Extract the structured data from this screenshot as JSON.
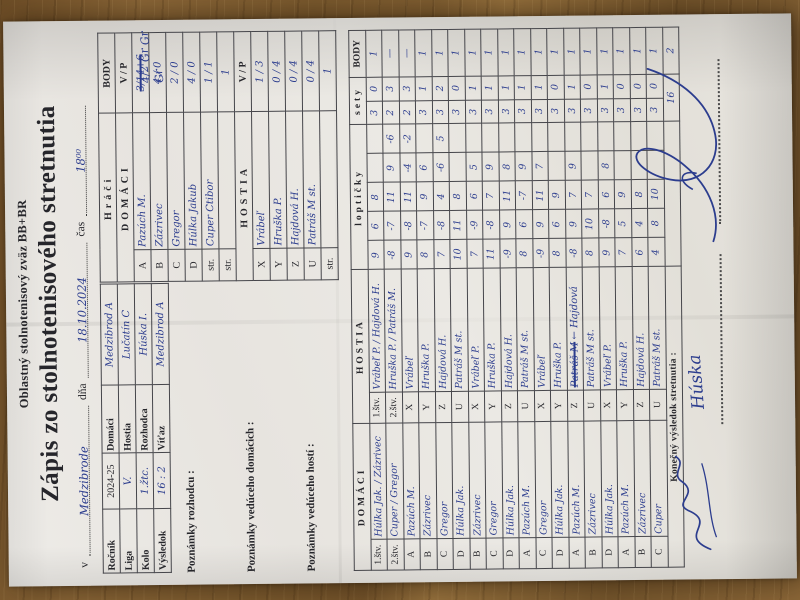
{
  "header": {
    "org": "Oblastný stolnotenisový zväz BB+BR",
    "title": "Zápis  zo stolnotenisového stretnutia",
    "place_label": "v",
    "place_value": "Medzibrode",
    "date_label": "dňa",
    "date_value": "18.10.2024",
    "time_label": "čas",
    "time_value": "18⁰⁰"
  },
  "info": {
    "rows": [
      {
        "l1": "Ročník",
        "v1": "2024-25",
        "hw1": false,
        "l2": "Domáci",
        "v2": "Medzibrod A",
        "hw2": true
      },
      {
        "l1": "Liga",
        "v1": "V.",
        "hw1": true,
        "l2": "Hostia",
        "v2": "Lučatín C",
        "hw2": true
      },
      {
        "l1": "Kolo",
        "v1": "1.žtc.",
        "hw1": true,
        "l2": "Rozhodca",
        "v2": "Húska I.",
        "hw2": true
      },
      {
        "l1": "Výsledok",
        "v1": "16 : 2",
        "hw1": true,
        "l2": "Víťaz",
        "v2": "Medzibrod A",
        "hw2": true
      }
    ]
  },
  "notes": {
    "referee": "Poznámky rozhodcu :",
    "home": "Poznámky vedúceho domácich :",
    "guest": "Poznámky vedúceho hostí :"
  },
  "players": {
    "title": "Hráči",
    "body": "BODY",
    "vp": "V / P",
    "domaci": "DOMÁCI",
    "hostia": "HOSTIA",
    "domaci_rows": [
      {
        "k": "A",
        "name": "Pazúch M.",
        "vp": "3/14+6",
        "crossed": true
      },
      {
        "k": "B",
        "name": "Zázrivec",
        "vp": "4 / 0"
      },
      {
        "k": "C",
        "name": "Gregor",
        "vp": "2 / 0"
      },
      {
        "k": "D",
        "name": "Húlka Jakub",
        "vp": "4 / 0"
      },
      {
        "k": "str.",
        "name": "Cuper Ctibor",
        "vp": "1 / 1"
      },
      {
        "k": "str.",
        "name": "",
        "vp": "1"
      }
    ],
    "hostia_rows": [
      {
        "k": "X",
        "name": "Vrábeľ",
        "vp": "1 / 3"
      },
      {
        "k": "Y",
        "name": "Hruška P.",
        "vp": "0 / 4"
      },
      {
        "k": "Z",
        "name": "Hajdová H.",
        "vp": "0 / 4"
      },
      {
        "k": "U",
        "name": "Patráš M st.",
        "vp": "0 / 4"
      },
      {
        "k": "str.",
        "name": "",
        "vp": "1"
      }
    ],
    "margin_marks": [
      "4/2",
      "Gr",
      "Gr",
      "Gr"
    ]
  },
  "match": {
    "headers": {
      "domaci": "DOMÁCI",
      "hostia": "HOSTIA",
      "lopticky": "loptičky",
      "sety": "sety",
      "body": "BODY"
    },
    "rows": [
      {
        "dl": "1.štv.",
        "dn": "Húlka Jak. / Zázrivec",
        "hl": "1.štv.",
        "hn": "Vrábeľ P. / Hajdová H.",
        "lopt": [
          "9",
          "6",
          "8",
          "",
          ""
        ],
        "sd": "3",
        "sh": "0",
        "body": "1"
      },
      {
        "dl": "2.štv.",
        "dn": "Cuper / Gregor",
        "hl": "2.štv.",
        "hn": "Hruška P. / Patráš M.",
        "lopt": [
          "-8",
          "-7",
          "11",
          "9",
          "-6"
        ],
        "sd": "2",
        "sh": "3",
        "body": "—"
      },
      {
        "dl": "A",
        "dn": "Pazúch M.",
        "hl": "X",
        "hn": "Vrábeľ",
        "lopt": [
          "9",
          "-8",
          "11",
          "-4",
          "-2"
        ],
        "sd": "2",
        "sh": "3",
        "body": "—"
      },
      {
        "dl": "B",
        "dn": "Zázrivec",
        "hl": "Y",
        "hn": "Hruška P.",
        "lopt": [
          "8",
          "-7",
          "9",
          "6",
          ""
        ],
        "sd": "3",
        "sh": "1",
        "body": "1"
      },
      {
        "dl": "C",
        "dn": "Gregor",
        "hl": "Z",
        "hn": "Hajdová H.",
        "lopt": [
          "7",
          "-8",
          "4",
          "-6",
          "5"
        ],
        "sd": "3",
        "sh": "2",
        "body": "1"
      },
      {
        "dl": "D",
        "dn": "Húlka Jak.",
        "hl": "U",
        "hn": "Patráš M st.",
        "lopt": [
          "10",
          "11",
          "8",
          "",
          ""
        ],
        "sd": "3",
        "sh": "0",
        "body": "1"
      },
      {
        "dl": "B",
        "dn": "Zázrivec",
        "hl": "X",
        "hn": "Vrábeľ P.",
        "lopt": [
          "7",
          "-9",
          "6",
          "5",
          ""
        ],
        "sd": "3",
        "sh": "1",
        "body": "1"
      },
      {
        "dl": "C",
        "dn": "Gregor",
        "hl": "Y",
        "hn": "Hruška P.",
        "lopt": [
          "11",
          "-8",
          "7",
          "9",
          ""
        ],
        "sd": "3",
        "sh": "1",
        "body": "1"
      },
      {
        "dl": "D",
        "dn": "Húlka Jak.",
        "hl": "Z",
        "hn": "Hajdová H.",
        "lopt": [
          "-9",
          "9",
          "11",
          "8",
          ""
        ],
        "sd": "3",
        "sh": "1",
        "body": "1"
      },
      {
        "dl": "A",
        "dn": "Pazúch M.",
        "hl": "U",
        "hn": "Patráš M st.",
        "lopt": [
          "8",
          "6",
          "-7",
          "9",
          ""
        ],
        "sd": "3",
        "sh": "1",
        "body": "1"
      },
      {
        "dl": "C",
        "dn": "Gregor",
        "hl": "X",
        "hn": "Vrábeľ",
        "lopt": [
          "-9",
          "9",
          "11",
          "7",
          ""
        ],
        "sd": "3",
        "sh": "1",
        "body": "1"
      },
      {
        "dl": "D",
        "dn": "Húlka Jak.",
        "hl": "Y",
        "hn": "Hruška P.",
        "lopt": [
          "8",
          "6",
          "9",
          "",
          ""
        ],
        "sd": "3",
        "sh": "0",
        "body": "1"
      },
      {
        "dl": "A",
        "dn": "Pazúch M.",
        "hl": "Z",
        "hn": "Patráš M",
        "hn_crossed": true,
        "hn_fix": "← Hajdová",
        "lopt": [
          "-8",
          "9",
          "7",
          "9",
          ""
        ],
        "sd": "3",
        "sh": "1",
        "body": "1"
      },
      {
        "dl": "B",
        "dn": "Zázrivec",
        "hl": "U",
        "hn": "Patráš M st.",
        "lopt": [
          "8",
          "10",
          "7",
          "",
          ""
        ],
        "sd": "3",
        "sh": "0",
        "body": "1"
      },
      {
        "dl": "D",
        "dn": "Húlka Jak.",
        "hl": "X",
        "hn": "Vrábeľ P.",
        "lopt": [
          "9",
          "-8",
          "6",
          "8",
          ""
        ],
        "sd": "3",
        "sh": "1",
        "body": "1"
      },
      {
        "dl": "A",
        "dn": "Pazúch M.",
        "hl": "Y",
        "hn": "Hruška P.",
        "lopt": [
          "7",
          "5",
          "9",
          "",
          ""
        ],
        "sd": "3",
        "sh": "0",
        "body": "1"
      },
      {
        "dl": "B",
        "dn": "Zázrivec",
        "hl": "Z",
        "hn": "Hajdová H.",
        "lopt": [
          "6",
          "4",
          "8",
          "",
          ""
        ],
        "sd": "3",
        "sh": "0",
        "body": "1"
      },
      {
        "dl": "C",
        "dn": "Cuper",
        "hl": "U",
        "hn": "Patráš M st.",
        "lopt": [
          "4",
          "8",
          "10",
          "",
          ""
        ],
        "sd": "3",
        "sh": "0",
        "body": "1"
      }
    ],
    "final_label": "Konečný výsledok stretnutia :",
    "final_home": "16",
    "final_guest": "2"
  },
  "signatures": {
    "referee": "Húska"
  }
}
